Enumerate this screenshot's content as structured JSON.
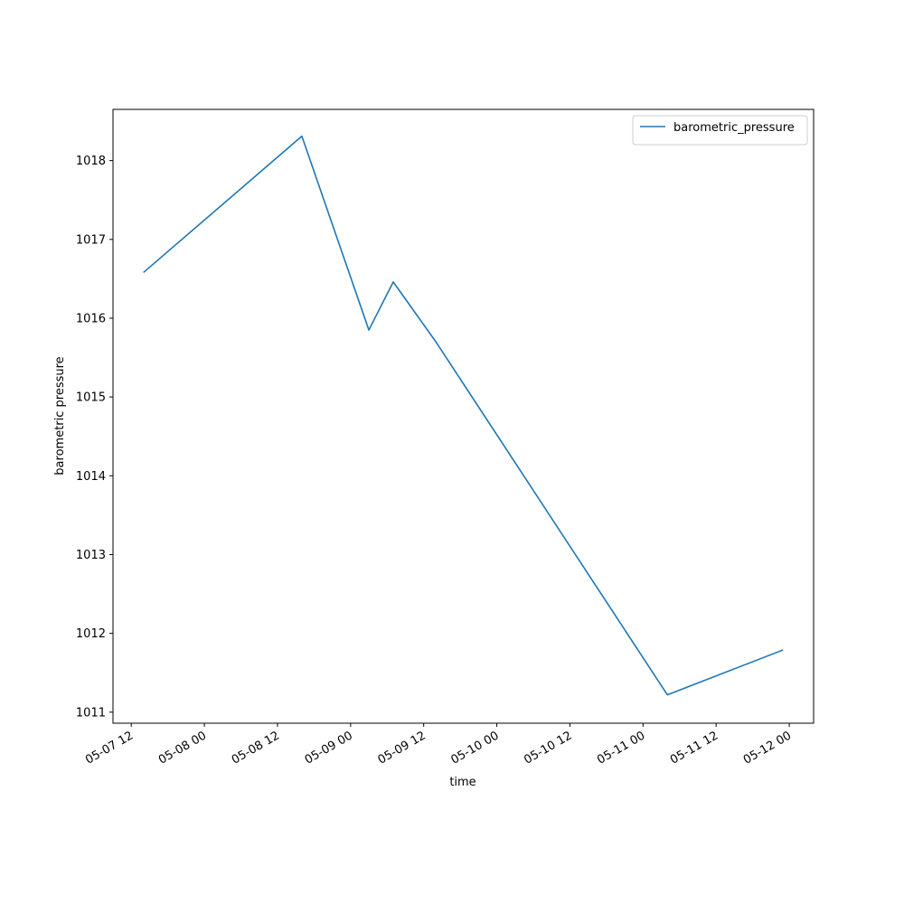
{
  "chart_data": {
    "type": "line",
    "x_label": "time",
    "y_label": "barometric pressure",
    "x": [
      "05-07 14",
      "05-08 16",
      "05-09 03",
      "05-09 07",
      "05-09 14",
      "05-11 04",
      "05-11 23"
    ],
    "series": [
      {
        "name": "barometric_pressure",
        "color": "#1f77b4",
        "values": [
          1016.58,
          1018.31,
          1015.85,
          1016.46,
          1015.7,
          1011.22,
          1011.79
        ]
      }
    ],
    "xlim": [
      "05-07 09",
      "05-12 04"
    ],
    "xticks": [
      "05-07 12",
      "05-08 00",
      "05-08 12",
      "05-09 00",
      "05-09 12",
      "05-10 00",
      "05-10 12",
      "05-11 00",
      "05-11 12",
      "05-12 00"
    ],
    "ylim": [
      1010.86,
      1018.65
    ],
    "yticks": [
      1011,
      1012,
      1013,
      1014,
      1015,
      1016,
      1017,
      1018
    ],
    "legend": "upper right"
  }
}
